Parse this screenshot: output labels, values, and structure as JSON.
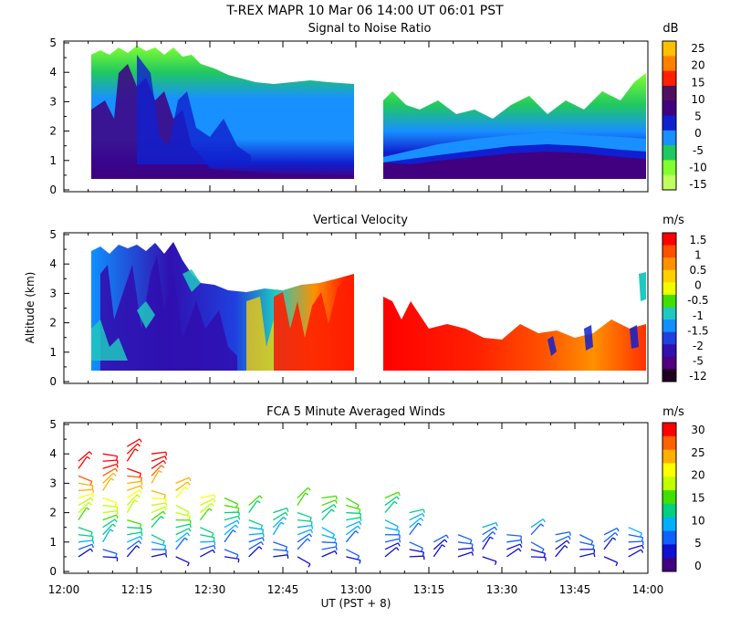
{
  "header": {
    "title": "T-REX   MAPR 10 Mar 06   14:00 UT   06:01   PST"
  },
  "x_axis": {
    "label": "UT  (PST + 8)",
    "range": [
      "12:00",
      "14:00"
    ],
    "ticks": [
      "12:00",
      "12:15",
      "12:30",
      "12:45",
      "13:00",
      "13:15",
      "13:30",
      "13:45",
      "14:00"
    ]
  },
  "y_axis_label": "Altitude (km)",
  "chart_data": [
    {
      "type": "heatmap",
      "title": "Signal to Noise Ratio",
      "ylabel": "",
      "ylim": [
        0,
        5
      ],
      "yticks": [
        "0",
        "1",
        "2",
        "3",
        "4",
        "5"
      ],
      "colorbar": {
        "unit": "dB",
        "labels": [
          "25",
          "20",
          "15",
          "10",
          "5",
          "0",
          "-5",
          "-10",
          "-15"
        ],
        "colors": [
          "#ffc000",
          "#ff8000",
          "#ff2000",
          "#501060",
          "#400080",
          "#1020d0",
          "#1890ff",
          "#20c860",
          "#80ff30",
          "#c0ff60"
        ]
      },
      "data_gap": [
        "12:59",
        "13:06"
      ],
      "description_values": {
        "surface_layer_dB": 10,
        "mid_layer_dB": 0,
        "top_edge_dB": -15
      }
    },
    {
      "type": "heatmap",
      "title": "Vertical Velocity",
      "ylabel": "Altitude (km)",
      "ylim": [
        0,
        5
      ],
      "yticks": [
        "0",
        "1",
        "2",
        "3",
        "4",
        "5"
      ],
      "colorbar": {
        "unit": "m/s",
        "labels": [
          "1.5",
          "1",
          "0.5",
          "0",
          "-0.5",
          "-1",
          "-1.5",
          "-2",
          "-5",
          "-12"
        ],
        "colors": [
          "#ff0000",
          "#ff5000",
          "#ff9000",
          "#ffd000",
          "#f0ff00",
          "#40e000",
          "#20c8c0",
          "#1090ff",
          "#2040e0",
          "#3010b0",
          "#500080",
          "#200020"
        ]
      },
      "data_gap": [
        "12:59",
        "13:06"
      ]
    },
    {
      "type": "scatter",
      "title": "FCA 5 Minute Averaged Winds",
      "ylabel": "",
      "ylim": [
        0,
        5
      ],
      "yticks": [
        "0",
        "1",
        "2",
        "3",
        "4",
        "5"
      ],
      "colorbar": {
        "unit": "m/s",
        "labels": [
          "30",
          "25",
          "20",
          "15",
          "10",
          "5",
          "0"
        ],
        "colors": [
          "#ff0000",
          "#ff6000",
          "#ffb000",
          "#ffff00",
          "#c0ff00",
          "#40e000",
          "#00d080",
          "#00b0ff",
          "#1060ff",
          "#1010d0",
          "#400080"
        ]
      },
      "wind_columns": [
        {
          "time": "12:03",
          "top": 3.8
        },
        {
          "time": "12:08",
          "top": 4.1
        },
        {
          "time": "12:13",
          "top": 4.3
        },
        {
          "time": "12:18",
          "top": 4.0
        },
        {
          "time": "12:23",
          "top": 3.0
        },
        {
          "time": "12:28",
          "top": 2.7
        },
        {
          "time": "12:33",
          "top": 2.5
        },
        {
          "time": "12:38",
          "top": 2.3
        },
        {
          "time": "12:43",
          "top": 2.1
        },
        {
          "time": "12:48",
          "top": 2.6
        },
        {
          "time": "12:53",
          "top": 2.5
        },
        {
          "time": "12:58",
          "top": 2.5
        },
        {
          "time": "13:06",
          "top": 2.5
        },
        {
          "time": "13:11",
          "top": 2.1
        },
        {
          "time": "13:16",
          "top": 1.2
        },
        {
          "time": "13:21",
          "top": 1.4
        },
        {
          "time": "13:26",
          "top": 1.5
        },
        {
          "time": "13:31",
          "top": 1.4
        },
        {
          "time": "13:36",
          "top": 1.5
        },
        {
          "time": "13:41",
          "top": 1.4
        },
        {
          "time": "13:46",
          "top": 1.3
        },
        {
          "time": "13:51",
          "top": 1.4
        },
        {
          "time": "13:56",
          "top": 1.5
        }
      ]
    }
  ]
}
